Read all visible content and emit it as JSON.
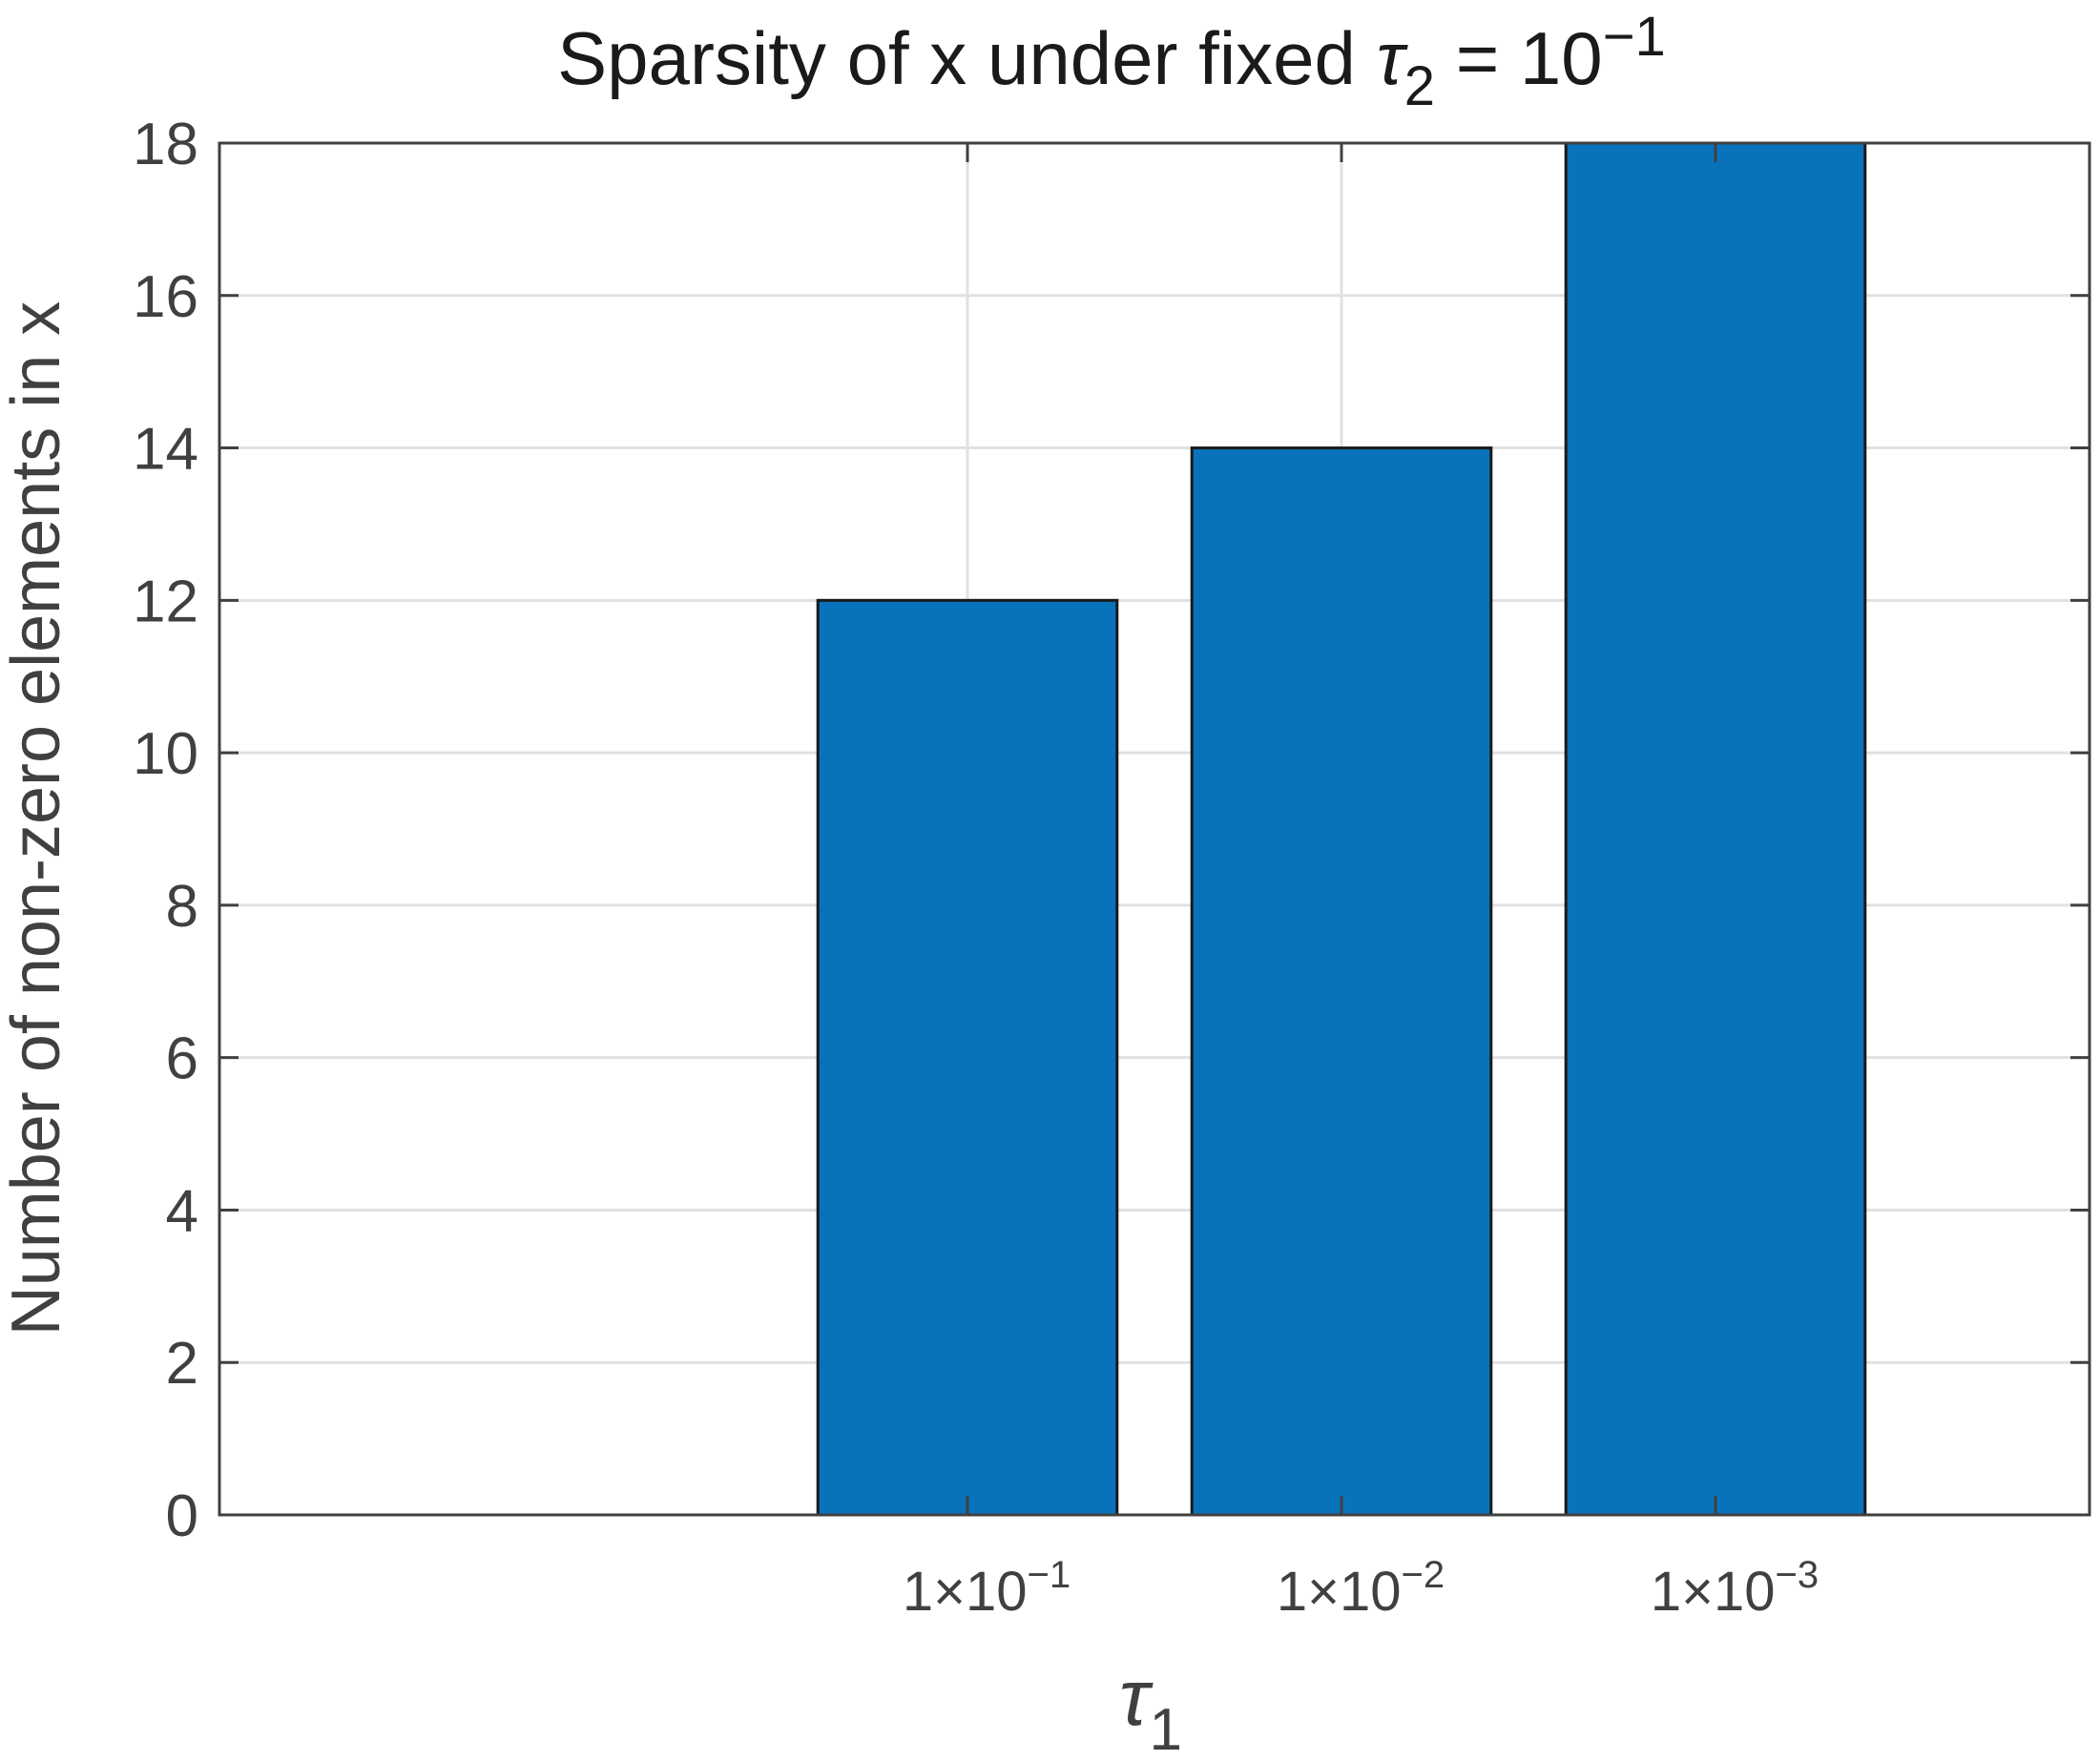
{
  "chart_data": {
    "type": "bar",
    "title": {
      "prefix": "Sparsity of x under fixed ",
      "symbol": "τ",
      "subscript": "2",
      "equals": " = 10",
      "superscript": "−1"
    },
    "xlabel": {
      "symbol": "τ",
      "subscript": "1"
    },
    "ylabel": "Number of non-zero elements in x",
    "categories": [
      {
        "mantissa": "1×10",
        "exponent": "−1"
      },
      {
        "mantissa": "1×10",
        "exponent": "−2"
      },
      {
        "mantissa": "1×10",
        "exponent": "−3"
      }
    ],
    "values": [
      12,
      14,
      18
    ],
    "ylim": [
      0,
      18
    ],
    "yticks": [
      0,
      2,
      4,
      6,
      8,
      10,
      12,
      14,
      16,
      18
    ],
    "xlim": [
      0,
      5
    ],
    "grid": true,
    "colors": {
      "bar_fill": "#0873BB",
      "bar_edge": "#1a1a1a",
      "grid": "#e1e1e1",
      "axis": "#404040"
    }
  }
}
